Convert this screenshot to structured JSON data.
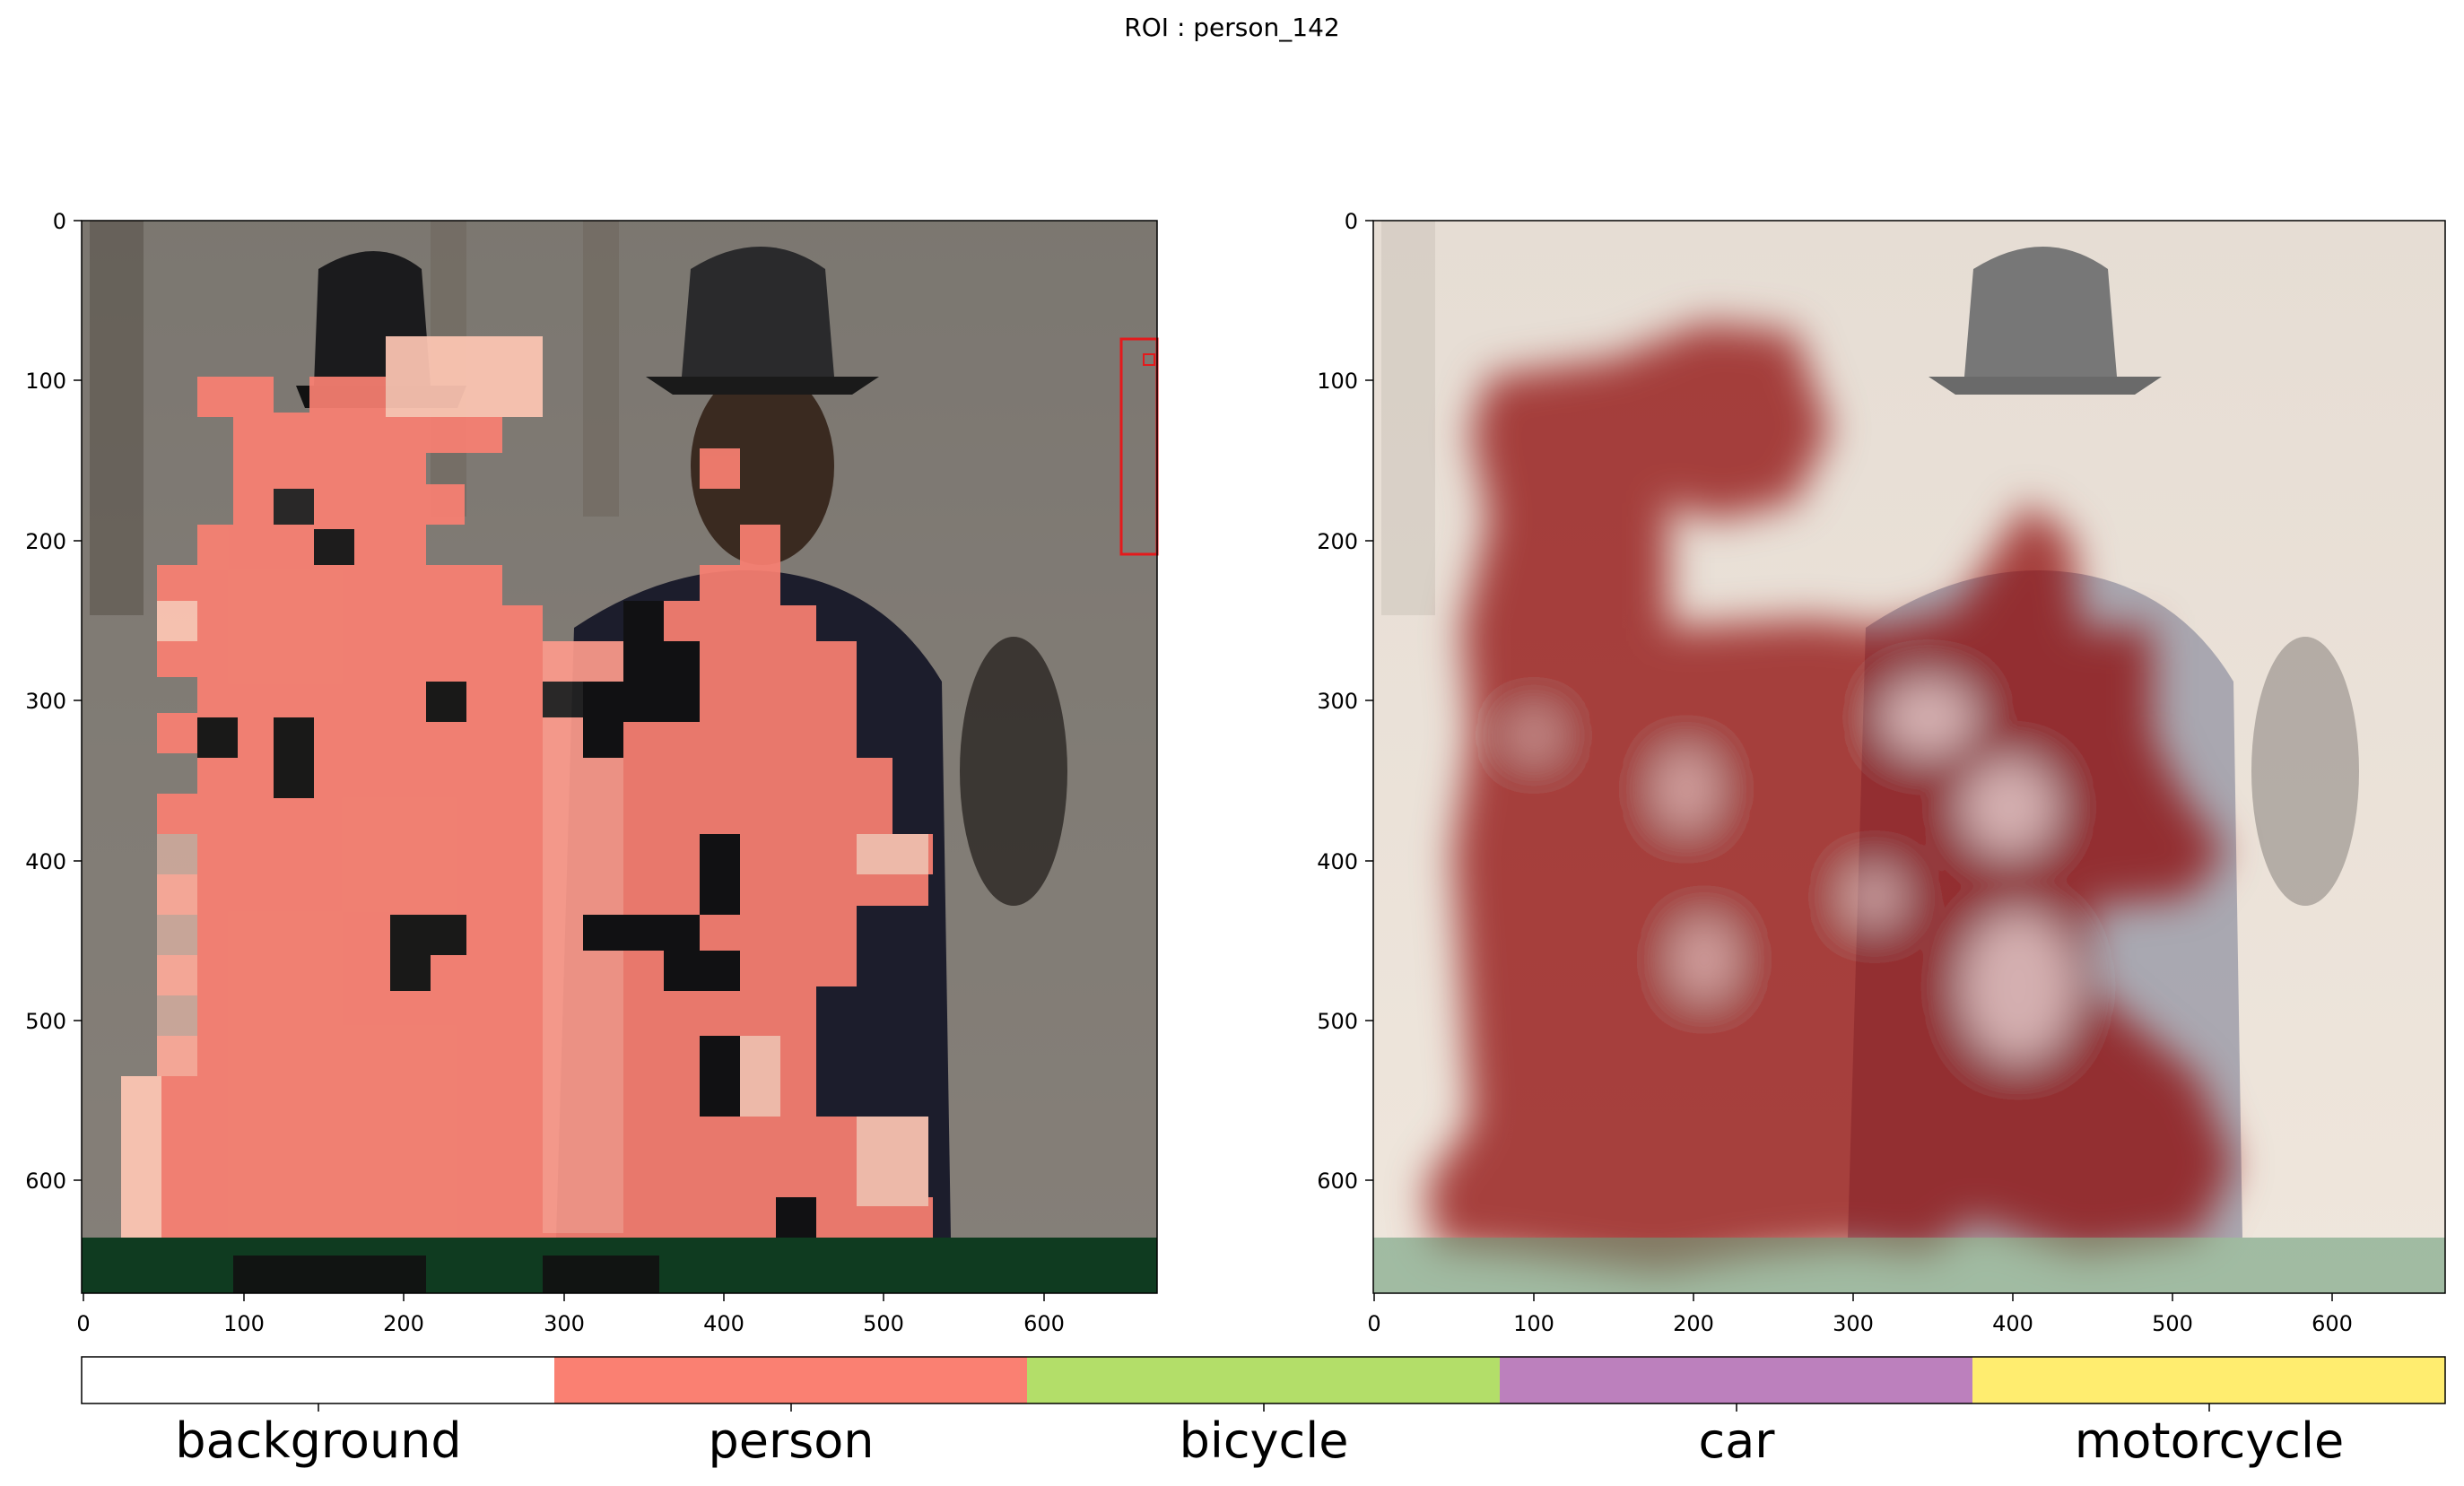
{
  "title": "ROI : person_142",
  "left_panel": {
    "xticks": [
      "0",
      "100",
      "200",
      "300",
      "400",
      "500",
      "600"
    ],
    "yticks": [
      "0",
      "100",
      "200",
      "300",
      "400",
      "500",
      "600"
    ],
    "overlay": "segmentation mask (person class)",
    "roi_box_color": "#e41a1c"
  },
  "right_panel": {
    "xticks": [
      "0",
      "100",
      "200",
      "300",
      "400",
      "500",
      "600"
    ],
    "yticks": [
      "0",
      "100",
      "200",
      "300",
      "400",
      "500",
      "600"
    ],
    "overlay": "attention heatmap"
  },
  "colorbar": {
    "classes": [
      {
        "label": "background",
        "color": "#ffffff"
      },
      {
        "label": "person",
        "color": "#fa8072"
      },
      {
        "label": "bicycle",
        "color": "#b3de69"
      },
      {
        "label": "car",
        "color": "#bc80bd"
      },
      {
        "label": "motorcycle",
        "color": "#ffed6f"
      }
    ]
  }
}
